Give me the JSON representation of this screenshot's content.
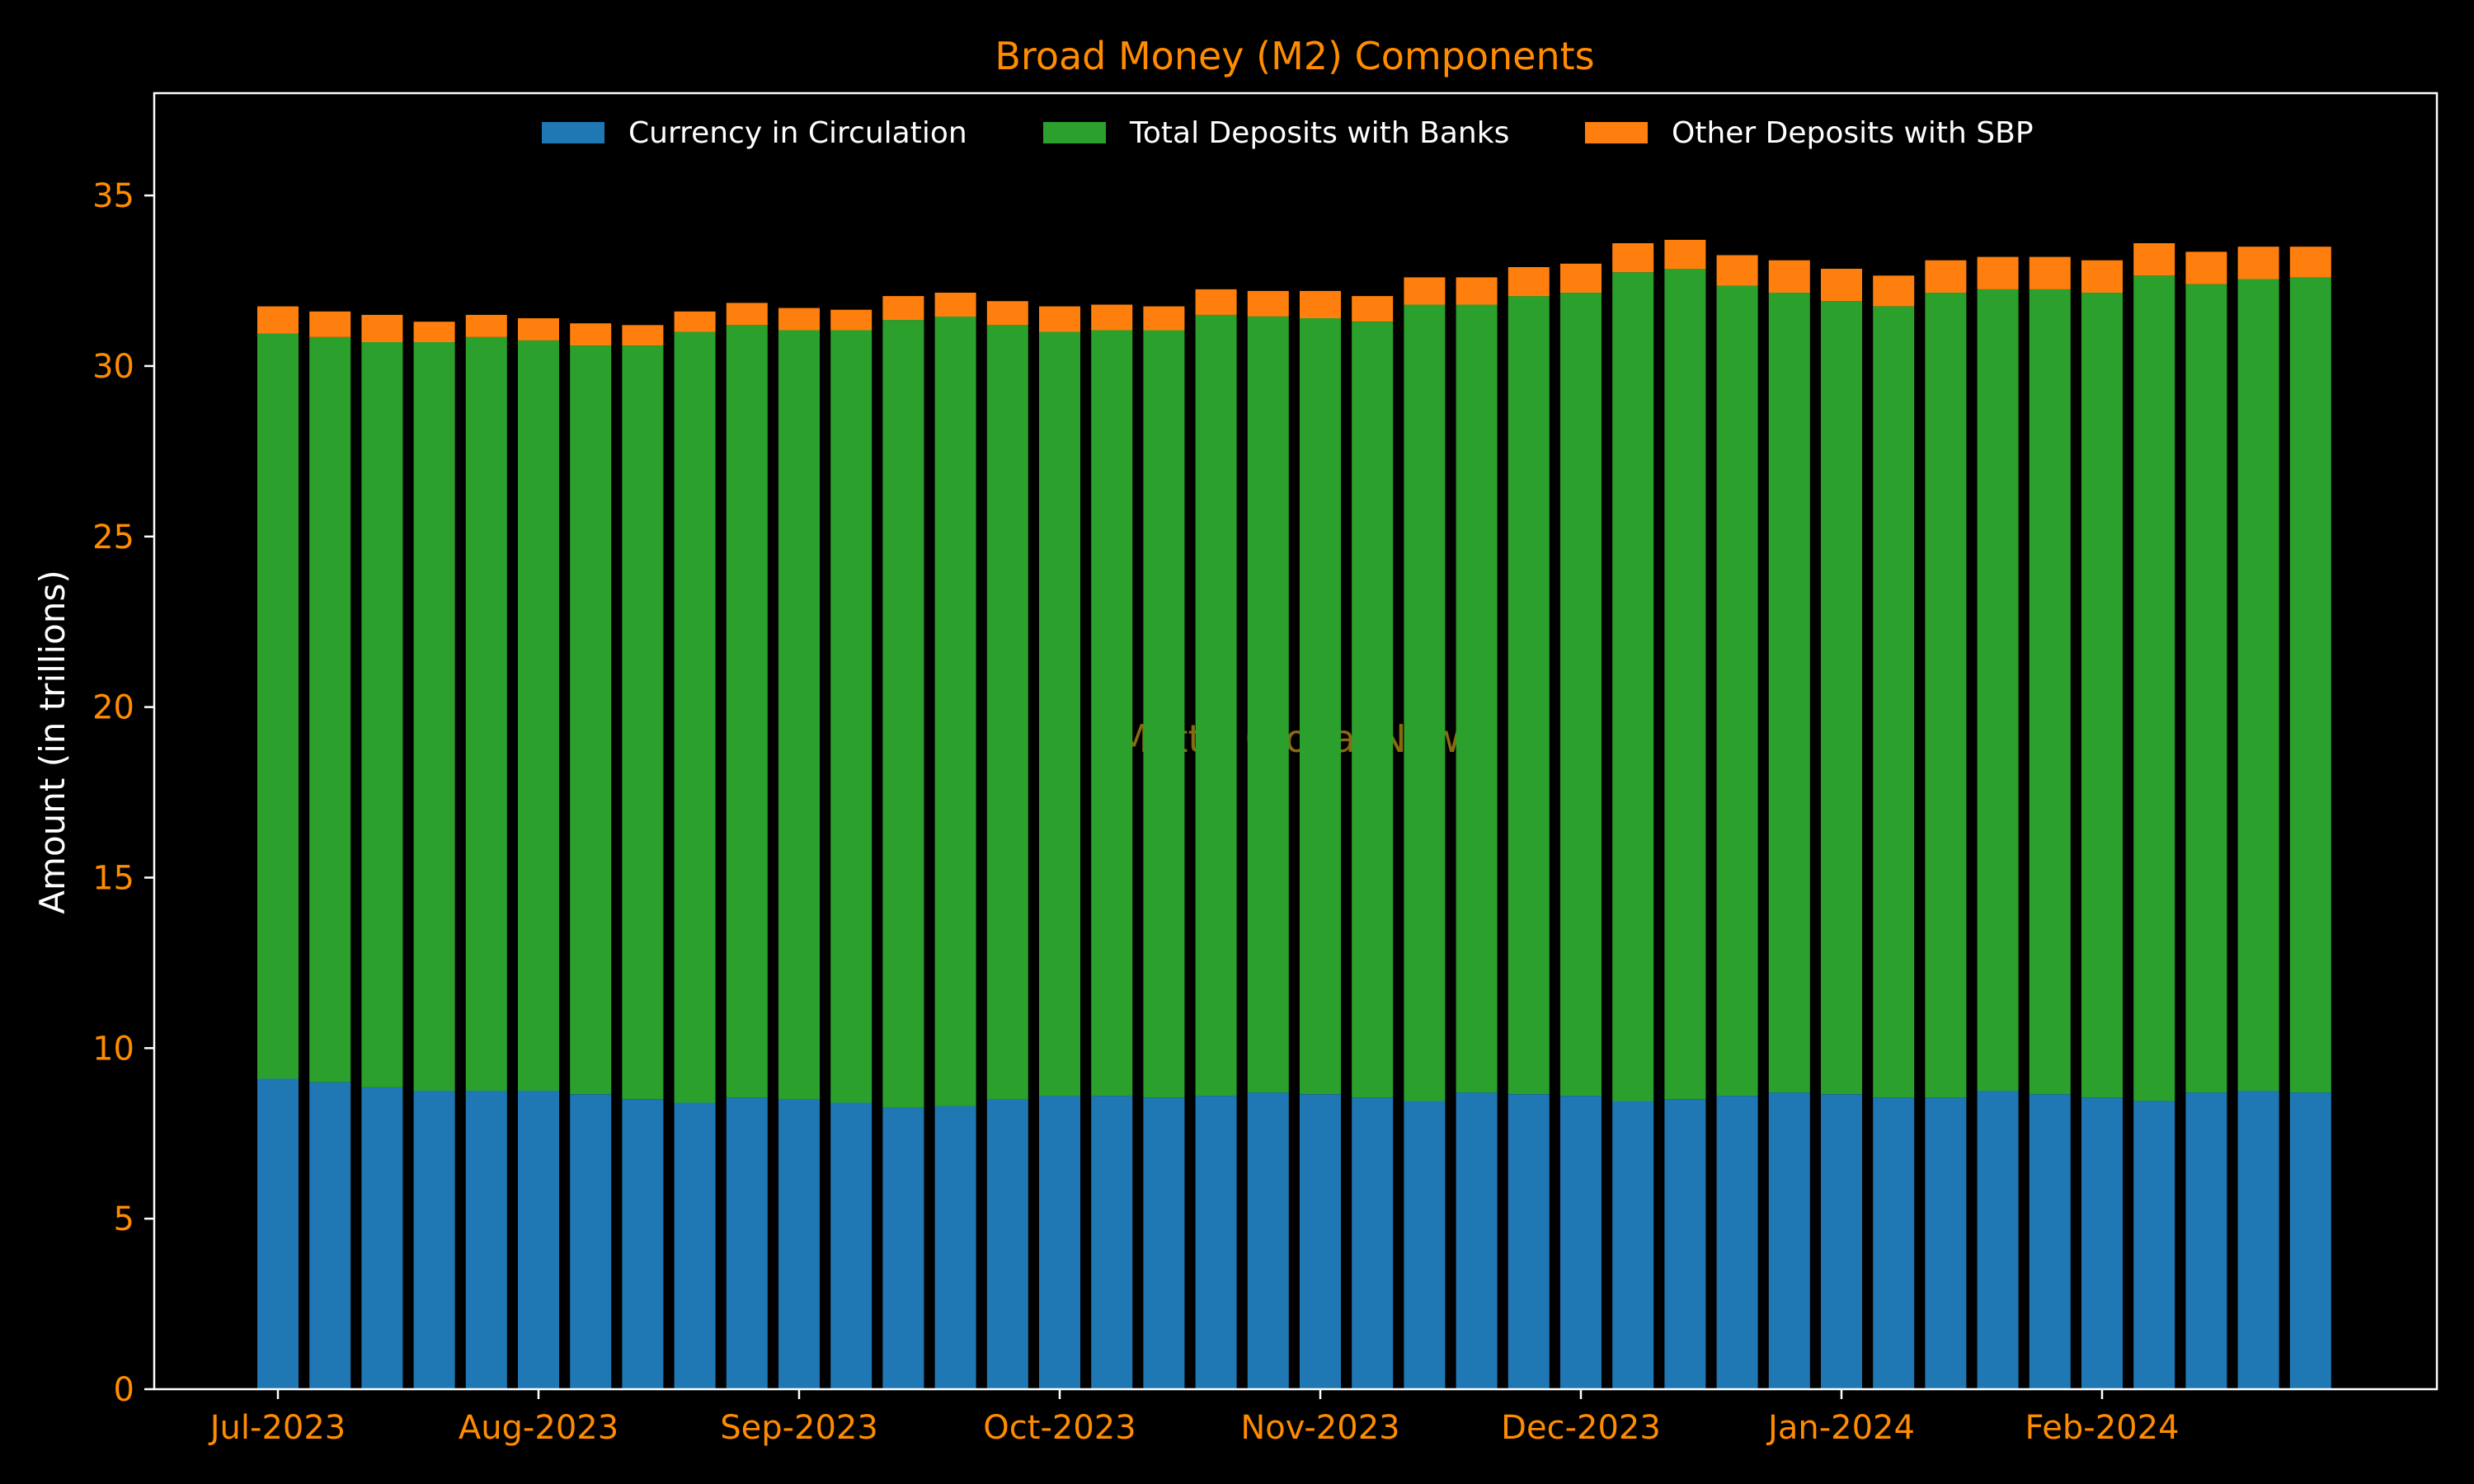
{
  "chart_data": {
    "type": "bar",
    "stacked": true,
    "title": "Broad Money (M2) Components",
    "xlabel": "",
    "ylabel": "Amount (in trillions)",
    "ylim": [
      0,
      38
    ],
    "yticks": [
      0,
      5,
      10,
      15,
      20,
      25,
      30,
      35
    ],
    "xtick_labels": [
      {
        "label": "Jul-2023",
        "bar_index": 0
      },
      {
        "label": "Aug-2023",
        "bar_index": 5
      },
      {
        "label": "Sep-2023",
        "bar_index": 10
      },
      {
        "label": "Oct-2023",
        "bar_index": 15
      },
      {
        "label": "Nov-2023",
        "bar_index": 20
      },
      {
        "label": "Dec-2023",
        "bar_index": 25
      },
      {
        "label": "Jan-2024",
        "bar_index": 30
      },
      {
        "label": "Feb-2024",
        "bar_index": 35
      }
    ],
    "legend_position": "top-center",
    "grid": false,
    "watermark": "Mettis Global News",
    "series": [
      {
        "name": "Currency in Circulation",
        "color": "#1f77b4",
        "values": [
          9.1,
          9.0,
          8.85,
          8.75,
          8.75,
          8.75,
          8.65,
          8.5,
          8.4,
          8.55,
          8.5,
          8.4,
          8.25,
          8.3,
          8.5,
          8.6,
          8.6,
          8.55,
          8.6,
          8.7,
          8.65,
          8.55,
          8.45,
          8.7,
          8.65,
          8.6,
          8.45,
          8.5,
          8.6,
          8.7,
          8.65,
          8.55,
          8.55,
          8.75,
          8.65,
          8.55,
          8.45,
          8.7,
          8.75,
          8.7
        ]
      },
      {
        "name": "Total Deposits with Banks",
        "color": "#2ca02c",
        "values": [
          21.85,
          21.85,
          21.85,
          21.95,
          22.1,
          22.0,
          21.95,
          22.1,
          22.6,
          22.65,
          22.55,
          22.65,
          23.1,
          23.15,
          22.7,
          22.4,
          22.45,
          22.5,
          22.9,
          22.75,
          22.75,
          22.75,
          23.35,
          23.1,
          23.4,
          23.55,
          24.3,
          24.35,
          23.75,
          23.45,
          23.25,
          23.2,
          23.6,
          23.5,
          23.6,
          23.6,
          24.2,
          23.7,
          23.8,
          23.9
        ]
      },
      {
        "name": "Other Deposits with SBP",
        "color": "#ff7f0e",
        "values": [
          0.8,
          0.75,
          0.8,
          0.6,
          0.65,
          0.65,
          0.65,
          0.6,
          0.6,
          0.65,
          0.65,
          0.6,
          0.7,
          0.7,
          0.7,
          0.75,
          0.75,
          0.7,
          0.75,
          0.75,
          0.8,
          0.75,
          0.8,
          0.8,
          0.85,
          0.85,
          0.85,
          0.85,
          0.9,
          0.95,
          0.95,
          0.9,
          0.95,
          0.95,
          0.95,
          0.95,
          0.95,
          0.95,
          0.95,
          0.9
        ]
      }
    ]
  }
}
